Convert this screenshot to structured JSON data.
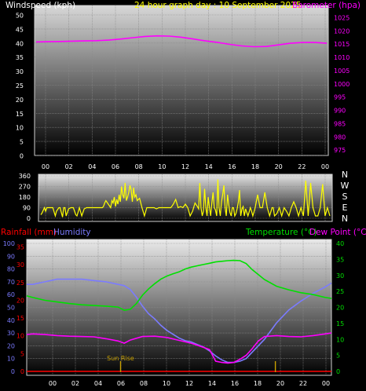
{
  "chart_data": [
    {
      "type": "line",
      "id": "top",
      "title": "24 hour graph day : 10 September 2025",
      "left_label": "Windspeed (kph)",
      "right_label": "Barometer (hpa)",
      "left_ticks": [
        50,
        45,
        40,
        35,
        30,
        25,
        20,
        15,
        10,
        5,
        0
      ],
      "right_ticks": [
        1025,
        1020,
        1015,
        1010,
        1005,
        1000,
        995,
        990,
        985,
        980,
        975
      ],
      "x_ticks": [
        "00",
        "02",
        "04",
        "06",
        "08",
        "10",
        "12",
        "14",
        "16",
        "18",
        "20",
        "22",
        "00"
      ],
      "xlim": [
        0,
        24
      ],
      "ylim_left": [
        0,
        50
      ],
      "ylim_right": [
        973,
        1026
      ],
      "series": [
        {
          "axis": "right",
          "color": "#ff00ff",
          "x": [
            0,
            1,
            2,
            3,
            4,
            5,
            6,
            7,
            8,
            9,
            10,
            11,
            12,
            13,
            14,
            15,
            16,
            17,
            18,
            19,
            20,
            21,
            22,
            23,
            24
          ],
          "values": [
            1015.8,
            1015.9,
            1016.0,
            1016.1,
            1016.2,
            1016.3,
            1016.5,
            1016.9,
            1017.4,
            1017.9,
            1018.1,
            1018.0,
            1017.6,
            1016.9,
            1016.2,
            1015.6,
            1014.9,
            1014.3,
            1014.0,
            1014.1,
            1014.7,
            1015.3,
            1015.6,
            1015.6,
            1015.3
          ]
        }
      ]
    },
    {
      "type": "line",
      "id": "direction",
      "labels_right": [
        "N",
        "W",
        "S",
        "E",
        "N"
      ],
      "left_ticks": [
        360,
        270,
        180,
        90,
        0
      ],
      "ylim": [
        0,
        360
      ],
      "xlim": [
        0,
        24
      ],
      "series": [
        {
          "color": "#ffff00",
          "x": [
            0,
            0.1,
            0.3,
            0.4,
            0.5,
            0.6,
            0.9,
            1.0,
            1.2,
            1.3,
            1.5,
            1.6,
            1.8,
            1.9,
            2.0,
            2.1,
            2.3,
            2.5,
            2.7,
            2.9,
            3.0,
            3.2,
            3.4,
            3.6,
            3.8,
            4.0,
            4.2,
            4.4,
            4.6,
            4.8,
            5.0,
            5.1,
            5.2,
            5.3,
            5.4,
            5.6,
            5.8,
            5.9,
            6.0,
            6.1,
            6.2,
            6.3,
            6.4,
            6.5,
            6.6,
            6.7,
            6.8,
            6.9,
            7.0,
            7.1,
            7.2,
            7.3,
            7.4,
            7.5,
            7.6,
            7.7,
            7.8,
            7.9,
            8.0,
            8.2,
            8.4,
            8.6,
            8.8,
            9.0,
            9.2,
            9.4,
            9.6,
            9.8,
            10.0,
            10.2,
            10.4,
            10.6,
            10.8,
            11.0,
            11.2,
            11.4,
            11.6,
            11.8,
            12.0,
            12.2,
            12.4,
            12.6,
            12.8,
            13.0,
            13.1,
            13.2,
            13.3,
            13.4,
            13.5,
            13.6,
            13.7,
            13.8,
            13.9,
            14.0,
            14.1,
            14.2,
            14.3,
            14.4,
            14.5,
            14.6,
            14.7,
            14.8,
            14.9,
            15.0,
            15.1,
            15.2,
            15.3,
            15.4,
            15.5,
            15.6,
            15.7,
            15.8,
            15.9,
            16.0,
            16.1,
            16.2,
            16.3,
            16.4,
            16.5,
            16.6,
            16.7,
            16.8,
            16.9,
            17.0,
            17.2,
            17.4,
            17.5,
            17.6,
            17.8,
            18.0,
            18.2,
            18.4,
            18.6,
            18.8,
            19.0,
            19.2,
            19.3,
            19.4,
            19.6,
            19.8,
            20.0,
            20.2,
            20.4,
            20.6,
            20.8,
            21.0,
            21.2,
            21.4,
            21.6,
            21.8,
            22.0,
            22.2,
            22.4,
            22.6,
            22.8,
            23.0,
            23.2,
            23.4,
            23.6,
            23.8,
            24.0
          ],
          "values": [
            30,
            45,
            90,
            60,
            90,
            90,
            90,
            90,
            20,
            60,
            90,
            90,
            10,
            90,
            90,
            20,
            80,
            90,
            90,
            30,
            20,
            90,
            20,
            80,
            90,
            90,
            90,
            90,
            90,
            90,
            90,
            90,
            100,
            130,
            150,
            120,
            90,
            150,
            130,
            180,
            100,
            160,
            120,
            200,
            140,
            270,
            200,
            170,
            300,
            150,
            180,
            220,
            280,
            240,
            140,
            260,
            180,
            200,
            150,
            170,
            90,
            20,
            90,
            90,
            90,
            90,
            80,
            90,
            90,
            90,
            90,
            90,
            90,
            120,
            160,
            90,
            100,
            90,
            120,
            90,
            20,
            60,
            130,
            100,
            80,
            300,
            90,
            20,
            60,
            250,
            90,
            20,
            180,
            90,
            20,
            130,
            220,
            90,
            70,
            20,
            330,
            90,
            20,
            140,
            200,
            280,
            90,
            20,
            200,
            120,
            50,
            20,
            90,
            90,
            20,
            40,
            80,
            140,
            240,
            20,
            80,
            100,
            20,
            80,
            20,
            90,
            60,
            20,
            90,
            200,
            90,
            90,
            220,
            90,
            20,
            90,
            90,
            20,
            40,
            90,
            20,
            90,
            60,
            20,
            90,
            140,
            90,
            20,
            90,
            20,
            320,
            20,
            300,
            90,
            20,
            20,
            90,
            290,
            20,
            90,
            20
          ]
        }
      ]
    },
    {
      "type": "line",
      "id": "bottom",
      "labels": {
        "rainfall": "Rainfall (mm)",
        "humidity": "Humidity",
        "temperature": "Temperature (°C)",
        "dewpoint": "Dew Point (°C)"
      },
      "humidity_ticks": [
        100,
        90,
        80,
        70,
        60,
        50,
        40,
        30,
        20,
        10,
        0
      ],
      "rainfall_ticks": [
        35,
        30,
        25,
        20,
        15,
        10,
        5,
        0
      ],
      "temp_ticks": [
        40,
        35,
        30,
        25,
        20,
        15,
        10,
        5,
        0
      ],
      "x_ticks": [
        "00",
        "02",
        "04",
        "06",
        "08",
        "10",
        "12",
        "14",
        "16",
        "18",
        "20",
        "22",
        "00"
      ],
      "xlim": [
        -0.5,
        24.5
      ],
      "ylim_humidity": [
        0,
        100
      ],
      "ylim_rainfall": [
        0,
        36
      ],
      "ylim_temp": [
        0,
        40
      ],
      "annotations": [
        {
          "text": "Sun Rise",
          "x": 7.2
        },
        {
          "text": "",
          "x": 19.9
        }
      ],
      "series": [
        {
          "name": "Humidity",
          "axis": "humidity",
          "color": "#7b7bff",
          "x": [
            -0.5,
            0,
            1,
            2,
            3,
            4,
            5,
            6,
            7,
            7.5,
            8,
            8.5,
            9,
            9.5,
            10,
            10.5,
            11,
            11.5,
            12,
            12.5,
            13,
            13.5,
            14,
            14.5,
            15,
            15.5,
            16,
            16.5,
            17,
            17.5,
            18,
            19,
            20,
            21,
            22,
            23,
            24,
            24.5
          ],
          "values": [
            68,
            68,
            70,
            72,
            72,
            72,
            71,
            70,
            68,
            67,
            64,
            58,
            51,
            45,
            41,
            36,
            32,
            29,
            26,
            24,
            23,
            21,
            19,
            16,
            12,
            9,
            7,
            7,
            8,
            10,
            15,
            25,
            38,
            48,
            55,
            61,
            66,
            69
          ]
        },
        {
          "name": "Dew Point",
          "axis": "temp",
          "color": "#ff00ff",
          "x": [
            -0.5,
            0,
            1,
            2,
            3,
            4,
            5,
            6,
            7,
            7.5,
            8,
            9,
            10,
            11,
            12,
            13,
            14,
            14.5,
            15,
            15.5,
            16,
            16.5,
            17,
            17.5,
            18,
            18.5,
            19,
            20,
            21,
            22,
            23,
            24,
            24.5
          ],
          "values": [
            11.5,
            11.7,
            11.5,
            11.2,
            11.0,
            10.9,
            10.8,
            10.2,
            9.5,
            8.8,
            9.8,
            10.9,
            11.0,
            10.6,
            9.7,
            8.8,
            7.5,
            6.8,
            3.2,
            2.8,
            2.6,
            2.8,
            3.8,
            5.0,
            7.1,
            9.5,
            10.9,
            11.2,
            10.9,
            10.8,
            11.2,
            11.7,
            12.0
          ]
        },
        {
          "name": "Temperature",
          "axis": "temp",
          "color": "#00e000",
          "x": [
            -0.5,
            0,
            1,
            2,
            3,
            4,
            5,
            6,
            7,
            7.5,
            8,
            8.5,
            9,
            9.5,
            10,
            10.5,
            11,
            11.5,
            12,
            12.5,
            13,
            13.5,
            14,
            14.5,
            15,
            15.5,
            16,
            16.5,
            17,
            17.5,
            18,
            19,
            20,
            21,
            22,
            23,
            24,
            24.5
          ],
          "values": [
            23.6,
            23.1,
            22.2,
            21.7,
            21.2,
            20.8,
            20.6,
            20.4,
            20.1,
            19.1,
            19.4,
            21.2,
            23.8,
            25.8,
            27.4,
            28.8,
            29.8,
            30.5,
            31.1,
            32.0,
            32.6,
            33.0,
            33.4,
            33.8,
            34.2,
            34.4,
            34.6,
            34.7,
            34.6,
            33.7,
            31.8,
            28.7,
            26.6,
            25.5,
            24.6,
            24.0,
            23.1,
            22.8
          ]
        },
        {
          "name": "Rainfall",
          "axis": "rainfall",
          "color": "#ff0000",
          "x": [
            -0.5,
            24.5
          ],
          "values": [
            0,
            0
          ]
        }
      ]
    }
  ]
}
